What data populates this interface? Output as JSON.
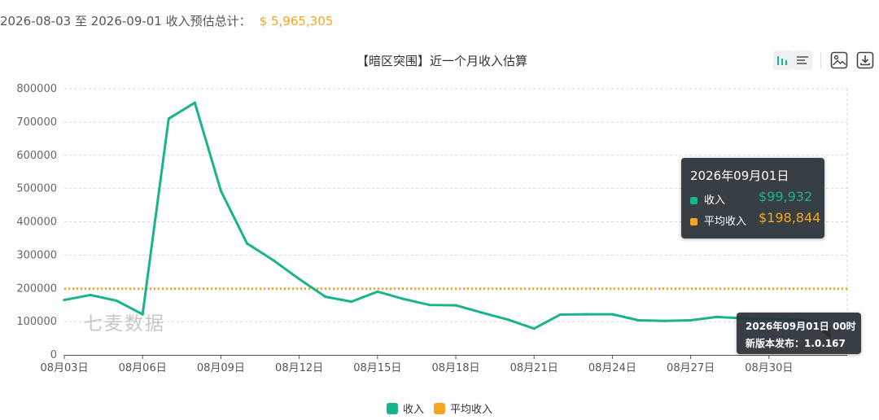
{
  "summary": {
    "range_text": "2026-08-03 至 2026-09-01 收入预估总计：",
    "total": "$ 5,965,305"
  },
  "toolbar": {
    "tools": [
      "bar-chart-icon",
      "list-icon",
      "save-image-icon",
      "download-icon"
    ]
  },
  "watermark": "七麦数据",
  "tooltip": {
    "date": "2026年09月01日",
    "rows": [
      {
        "label": "收入",
        "value": "$99,932",
        "color": "#1bb38a"
      },
      {
        "label": "平均收入",
        "value": "$198,844",
        "color": "#f5a623"
      }
    ]
  },
  "markpoint_tooltip": {
    "line1": "2026年09月01日 00时",
    "line2": "新版本发布：1.0.167"
  },
  "chart_data": {
    "type": "line",
    "title": "【暗区突围】近一个月收入估算",
    "x": [
      "08月03日",
      "08月04日",
      "08月05日",
      "08月06日",
      "08月07日",
      "08月08日",
      "08月09日",
      "08月10日",
      "08月11日",
      "08月12日",
      "08月13日",
      "08月14日",
      "08月15日",
      "08月16日",
      "08月17日",
      "08月18日",
      "08月19日",
      "08月20日",
      "08月21日",
      "08月22日",
      "08月23日",
      "08月24日",
      "08月25日",
      "08月26日",
      "08月27日",
      "08月28日",
      "08月29日",
      "08月30日",
      "08月31日",
      "09月01日"
    ],
    "x_ticks": [
      "08月03日",
      "08月06日",
      "08月09日",
      "08月12日",
      "08月15日",
      "08月18日",
      "08月21日",
      "08月24日",
      "08月27日",
      "08月30日"
    ],
    "y_ticks": [
      "0",
      "100000",
      "200000",
      "300000",
      "400000",
      "500000",
      "600000",
      "700000",
      "800000"
    ],
    "ylim": [
      0,
      800000
    ],
    "grid": true,
    "legend_position": "bottom",
    "series": [
      {
        "name": "收入",
        "color": "#1bb38a",
        "values": [
          165000,
          180000,
          163000,
          122000,
          710000,
          758000,
          493000,
          335000,
          285000,
          228000,
          175000,
          160000,
          190000,
          168000,
          150000,
          149000,
          127000,
          106000,
          79000,
          121000,
          122000,
          122000,
          104000,
          102000,
          104000,
          114000,
          110000,
          108000,
          106000,
          99932
        ]
      },
      {
        "name": "平均收入",
        "color": "#f5a623",
        "values": [
          198844,
          198844,
          198844,
          198844,
          198844,
          198844,
          198844,
          198844,
          198844,
          198844,
          198844,
          198844,
          198844,
          198844,
          198844,
          198844,
          198844,
          198844,
          198844,
          198844,
          198844,
          198844,
          198844,
          198844,
          198844,
          198844,
          198844,
          198844,
          198844,
          198844
        ]
      }
    ]
  }
}
